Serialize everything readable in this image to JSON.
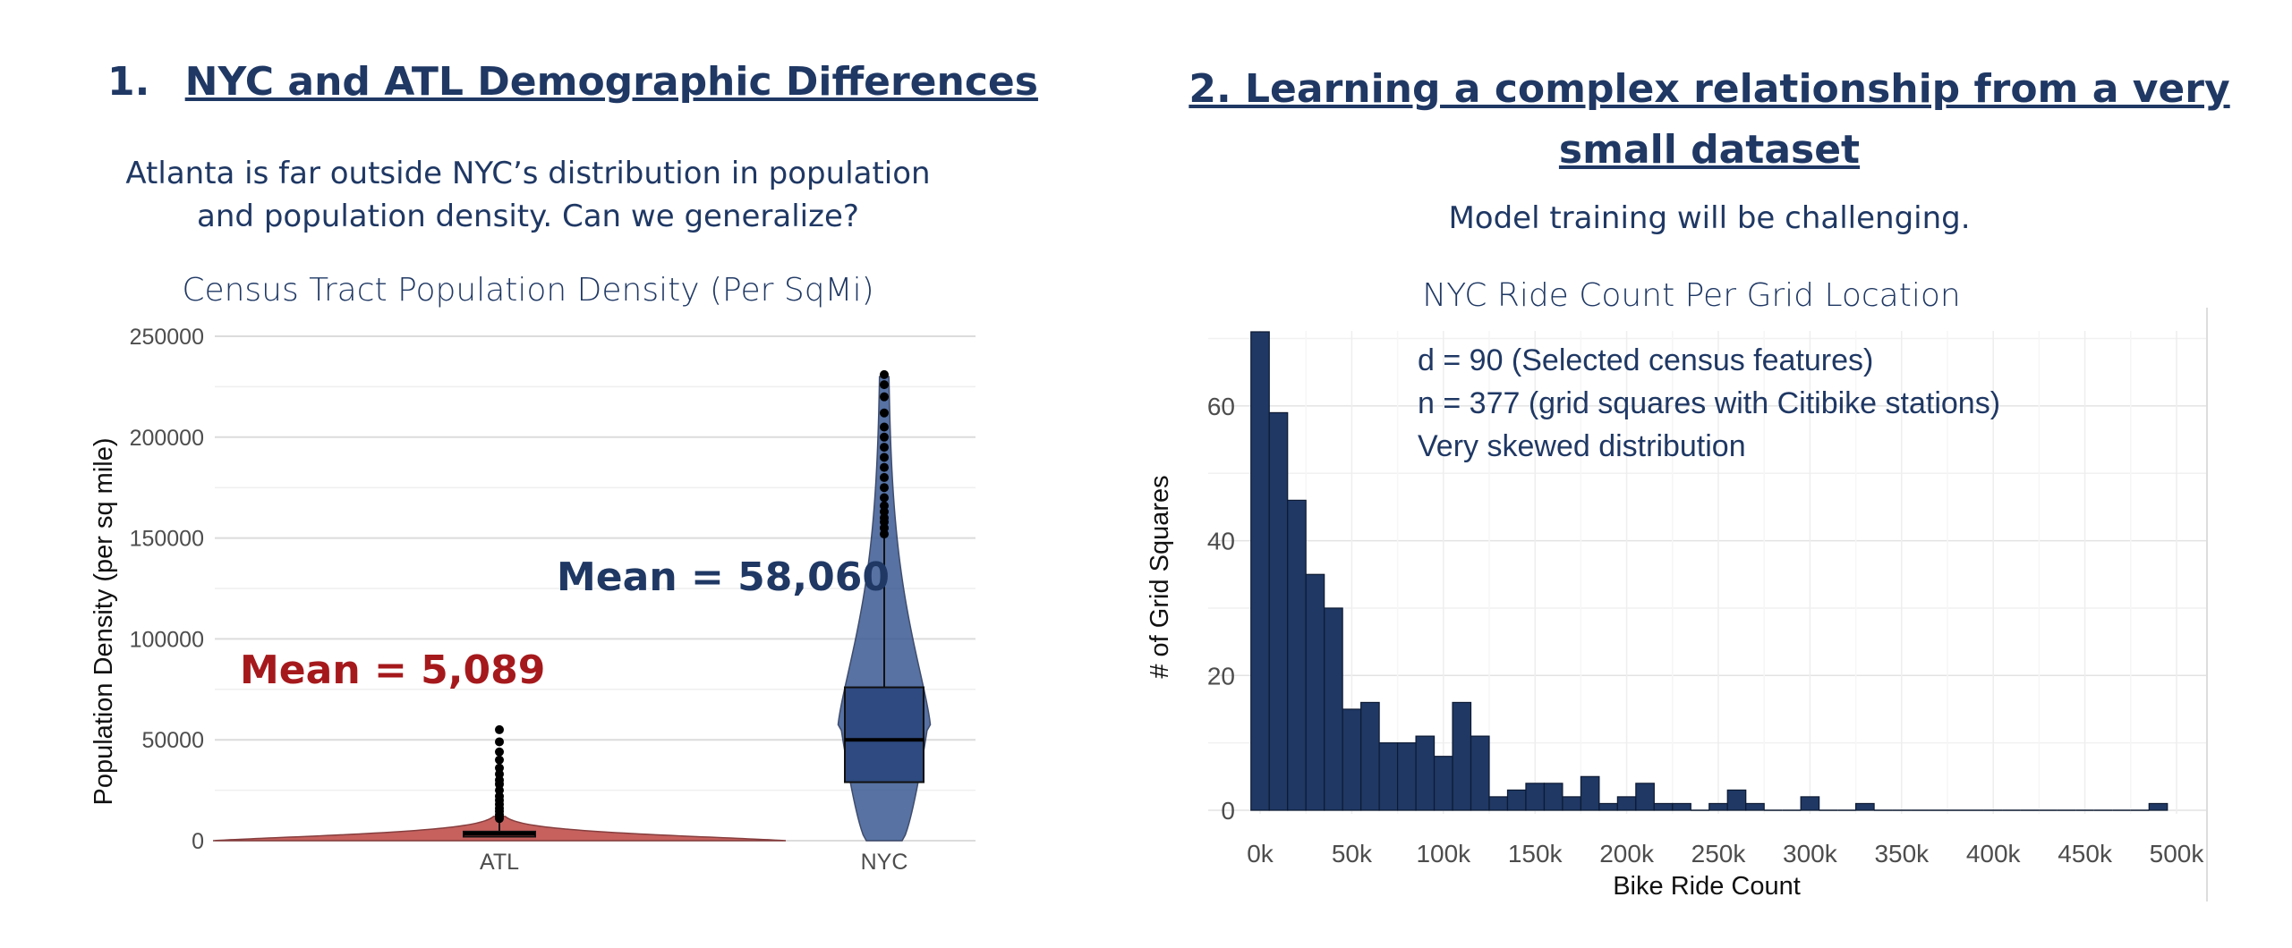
{
  "left": {
    "heading_number": "1.",
    "heading": "NYC and ATL Demographic Differences",
    "subtitle_line1": "Atlanta is far outside NYC’s distribution in population",
    "subtitle_line2": "and population density. Can we generalize?",
    "atl_mean_label": "Mean = 5,089",
    "nyc_mean_label": "Mean = 58,060",
    "atl_color": "#c0504d",
    "nyc_color": "#3a5a93",
    "mean_atl_color": "#a5191c",
    "mean_nyc_color": "#1f3864"
  },
  "right": {
    "heading_line1": "2. Learning a complex relationship from a very",
    "heading_line2": "small dataset",
    "subtitle": "Model training will be challenging.",
    "annotation_line1": "d = 90 (Selected census features)",
    "annotation_line2": "n = 377 (grid squares with Citibike stations)",
    "annotation_line3": "Very skewed distribution",
    "bar_color": "#1f3864"
  },
  "chart_data": [
    {
      "type": "violin",
      "title": "Census Tract Population Density (Per SqMi)",
      "xlabel": "",
      "ylabel": "Population Density (per sq mile)",
      "categories": [
        "ATL",
        "NYC"
      ],
      "ylim": [
        0,
        250000
      ],
      "yticks": [
        0,
        50000,
        100000,
        150000,
        200000,
        250000
      ],
      "ytick_labels": [
        "0",
        "50000",
        "100000",
        "150000",
        "200000",
        "250000"
      ],
      "grid": true,
      "means": [
        5089,
        58060
      ],
      "box": [
        {
          "q1": 2000,
          "median": 3500,
          "q3": 4500,
          "whisker_high": 10000
        },
        {
          "q1": 29000,
          "median": 50000,
          "q3": 76000,
          "whisker_high": 150000
        }
      ],
      "outliers": [
        [
          11000,
          12000,
          13000,
          14500,
          16000,
          18000,
          20000,
          22000,
          25000,
          28000,
          30000,
          33000,
          36000,
          40000,
          44000,
          49000,
          55000
        ],
        [
          152000,
          155000,
          158000,
          160000,
          163000,
          166000,
          170000,
          175000,
          180000,
          185000,
          190000,
          195000,
          200000,
          205000,
          212000,
          220000,
          226000,
          231000
        ]
      ]
    },
    {
      "type": "bar",
      "title": "NYC Ride Count Per Grid Location",
      "xlabel": "Bike Ride Count",
      "ylabel": "# of Grid Squares",
      "xlim": [
        0,
        500000
      ],
      "ylim": [
        0,
        71
      ],
      "xticks": [
        0,
        50000,
        100000,
        150000,
        200000,
        250000,
        300000,
        350000,
        400000,
        450000,
        500000
      ],
      "xtick_labels": [
        "0k",
        "50k",
        "100k",
        "150k",
        "200k",
        "250k",
        "300k",
        "350k",
        "400k",
        "450k",
        "500k"
      ],
      "yticks": [
        0,
        20,
        40,
        60
      ],
      "ytick_labels": [
        "0",
        "20",
        "40",
        "60"
      ],
      "grid": true,
      "bin_width": 10000,
      "bin_start": -5000,
      "values": [
        71,
        59,
        46,
        35,
        30,
        15,
        16,
        10,
        10,
        11,
        8,
        16,
        11,
        2,
        3,
        4,
        4,
        2,
        5,
        1,
        2,
        4,
        1,
        1,
        0,
        1,
        3,
        1,
        0,
        0,
        2,
        0,
        0,
        1,
        0,
        0,
        0,
        0,
        0,
        0,
        0,
        0,
        0,
        0,
        0,
        0,
        0,
        0,
        0,
        1
      ]
    }
  ]
}
